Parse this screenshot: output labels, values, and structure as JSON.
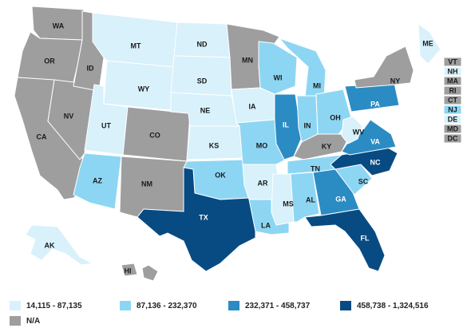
{
  "colors": {
    "c1": "#d8f1fb",
    "c2": "#8dd6f3",
    "c3": "#2b8cc4",
    "c4": "#084b83",
    "na": "#9e9e9e"
  },
  "legend": [
    {
      "label": "14,115 - 87,135",
      "color": "c1"
    },
    {
      "label": "87,136 - 232,370",
      "color": "c2"
    },
    {
      "label": "232,371 - 458,737",
      "color": "c3"
    },
    {
      "label": "458,738 - 1,324,516",
      "color": "c4"
    },
    {
      "label": "N/A",
      "color": "na"
    }
  ],
  "states": [
    {
      "code": "WA",
      "color": "na"
    },
    {
      "code": "OR",
      "color": "na"
    },
    {
      "code": "CA",
      "color": "na"
    },
    {
      "code": "NV",
      "color": "na"
    },
    {
      "code": "ID",
      "color": "na"
    },
    {
      "code": "MT",
      "color": "c1"
    },
    {
      "code": "WY",
      "color": "c1"
    },
    {
      "code": "UT",
      "color": "c1"
    },
    {
      "code": "AZ",
      "color": "c2"
    },
    {
      "code": "CO",
      "color": "na"
    },
    {
      "code": "NM",
      "color": "na"
    },
    {
      "code": "ND",
      "color": "c1"
    },
    {
      "code": "SD",
      "color": "c1"
    },
    {
      "code": "NE",
      "color": "c1"
    },
    {
      "code": "KS",
      "color": "c1"
    },
    {
      "code": "OK",
      "color": "c2"
    },
    {
      "code": "TX",
      "color": "c4"
    },
    {
      "code": "MN",
      "color": "na"
    },
    {
      "code": "IA",
      "color": "c1"
    },
    {
      "code": "MO",
      "color": "c2"
    },
    {
      "code": "AR",
      "color": "c1"
    },
    {
      "code": "LA",
      "color": "c2"
    },
    {
      "code": "WI",
      "color": "c2"
    },
    {
      "code": "IL",
      "color": "c3"
    },
    {
      "code": "MI",
      "color": "c2"
    },
    {
      "code": "IN",
      "color": "c2"
    },
    {
      "code": "OH",
      "color": "c2"
    },
    {
      "code": "KY",
      "color": "na"
    },
    {
      "code": "TN",
      "color": "c2"
    },
    {
      "code": "MS",
      "color": "c1"
    },
    {
      "code": "AL",
      "color": "c2"
    },
    {
      "code": "GA",
      "color": "c3"
    },
    {
      "code": "FL",
      "color": "c4"
    },
    {
      "code": "SC",
      "color": "c2"
    },
    {
      "code": "NC",
      "color": "c4"
    },
    {
      "code": "VA",
      "color": "c3"
    },
    {
      "code": "WV",
      "color": "c1"
    },
    {
      "code": "PA",
      "color": "c3"
    },
    {
      "code": "NY",
      "color": "na"
    },
    {
      "code": "ME",
      "color": "c1"
    },
    {
      "code": "AK",
      "color": "c1"
    },
    {
      "code": "HI",
      "color": "na"
    }
  ],
  "small_states": [
    {
      "code": "VT",
      "color": "na"
    },
    {
      "code": "NH",
      "color": "c1"
    },
    {
      "code": "MA",
      "color": "na"
    },
    {
      "code": "RI",
      "color": "na"
    },
    {
      "code": "CT",
      "color": "na"
    },
    {
      "code": "NJ",
      "color": "c2"
    },
    {
      "code": "DE",
      "color": "c1"
    },
    {
      "code": "MD",
      "color": "na"
    },
    {
      "code": "DC",
      "color": "na"
    }
  ]
}
